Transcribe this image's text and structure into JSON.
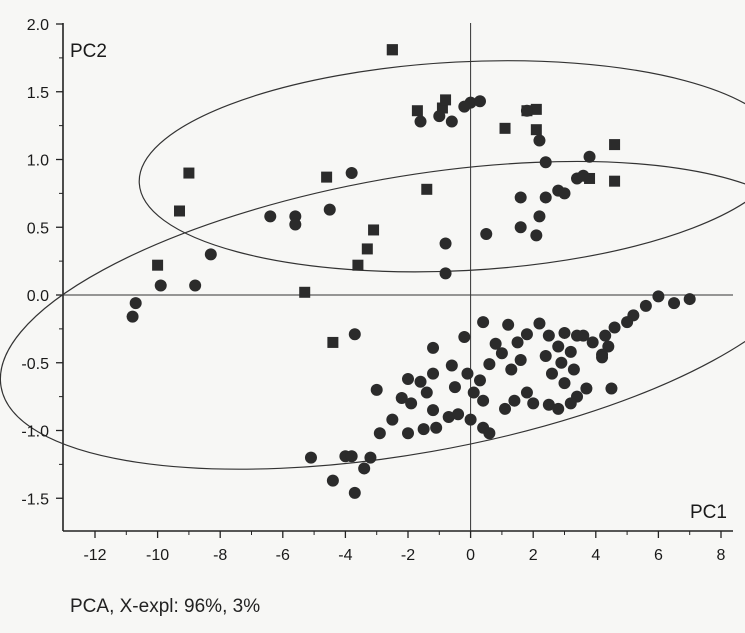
{
  "chart_data": {
    "type": "scatter",
    "xlabel": "PC1",
    "ylabel": "PC2",
    "caption": "PCA, X-expl: 96%, 3%",
    "xlim": [
      -13,
      8.5
    ],
    "ylim": [
      -1.75,
      2.0
    ],
    "x_ticks": [
      "-12",
      "-10",
      "-8",
      "-6",
      "-4",
      "-2",
      "0",
      "2",
      "4",
      "6",
      "8"
    ],
    "y_ticks": [
      "2.0",
      "1.5",
      "1.0",
      "0.5",
      "0.0",
      "-0.5",
      "-1.0",
      "-1.5"
    ],
    "grid": false,
    "reference_lines": {
      "x": 0,
      "y": 0
    },
    "marker_color": "#2b2b2b",
    "ellipses": [
      {
        "center": [
          -0.3,
          0.95
        ],
        "rx": 10.3,
        "ry": 0.77,
        "angle_deg": -3
      },
      {
        "center": [
          -2.0,
          -0.15
        ],
        "rx": 13.2,
        "ry": 1.02,
        "angle_deg": -10
      }
    ],
    "series": [
      {
        "marker": "square",
        "points": [
          [
            -2.5,
            1.81
          ],
          [
            -2.5,
            1.81
          ],
          [
            -1.7,
            1.36
          ],
          [
            -0.9,
            1.38
          ],
          [
            -0.8,
            1.44
          ],
          [
            1.1,
            1.23
          ],
          [
            1.8,
            1.36
          ],
          [
            2.1,
            1.37
          ],
          [
            2.1,
            1.22
          ],
          [
            4.6,
            1.11
          ],
          [
            4.6,
            0.84
          ],
          [
            3.8,
            0.86
          ],
          [
            -9.0,
            0.9
          ],
          [
            -9.3,
            0.62
          ],
          [
            -4.6,
            0.87
          ],
          [
            -1.4,
            0.78
          ],
          [
            -3.1,
            0.48
          ],
          [
            -3.3,
            0.34
          ],
          [
            -3.6,
            0.22
          ],
          [
            -10.0,
            0.22
          ],
          [
            -5.3,
            0.02
          ],
          [
            -4.4,
            -0.35
          ]
        ]
      },
      {
        "marker": "circle",
        "points": [
          [
            -1.6,
            1.28
          ],
          [
            -0.6,
            1.28
          ],
          [
            0.0,
            1.42
          ],
          [
            0.3,
            1.43
          ],
          [
            -1.0,
            1.32
          ],
          [
            -0.2,
            1.39
          ],
          [
            1.8,
            1.36
          ],
          [
            2.2,
            1.14
          ],
          [
            2.4,
            0.98
          ],
          [
            2.4,
            0.72
          ],
          [
            2.8,
            0.77
          ],
          [
            3.0,
            0.75
          ],
          [
            3.4,
            0.86
          ],
          [
            3.6,
            0.88
          ],
          [
            3.8,
            1.02
          ],
          [
            1.6,
            0.72
          ],
          [
            2.2,
            0.58
          ],
          [
            1.6,
            0.5
          ],
          [
            2.1,
            0.44
          ],
          [
            0.5,
            0.45
          ],
          [
            -3.8,
            0.9
          ],
          [
            -4.5,
            0.63
          ],
          [
            -5.6,
            0.58
          ],
          [
            -6.4,
            0.58
          ],
          [
            -5.6,
            0.52
          ],
          [
            -8.3,
            0.3
          ],
          [
            -0.8,
            0.38
          ],
          [
            -0.8,
            0.16
          ],
          [
            -10.7,
            -0.06
          ],
          [
            -10.8,
            -0.16
          ],
          [
            -9.9,
            0.07
          ],
          [
            -8.8,
            0.07
          ],
          [
            -3.7,
            -0.29
          ],
          [
            -1.2,
            -0.39
          ],
          [
            -0.2,
            -0.31
          ],
          [
            0.4,
            -0.2
          ],
          [
            6.0,
            -0.01
          ],
          [
            6.5,
            -0.06
          ],
          [
            7.0,
            -0.03
          ],
          [
            5.6,
            -0.08
          ],
          [
            5.2,
            -0.15
          ],
          [
            5.0,
            -0.2
          ],
          [
            4.6,
            -0.24
          ],
          [
            4.3,
            -0.3
          ],
          [
            4.4,
            -0.38
          ],
          [
            4.2,
            -0.44
          ],
          [
            3.6,
            -0.3
          ],
          [
            3.9,
            -0.35
          ],
          [
            3.4,
            -0.3
          ],
          [
            3.0,
            -0.28
          ],
          [
            3.2,
            -0.42
          ],
          [
            2.9,
            -0.5
          ],
          [
            3.3,
            -0.55
          ],
          [
            3.0,
            -0.65
          ],
          [
            3.4,
            -0.75
          ],
          [
            3.2,
            -0.8
          ],
          [
            3.7,
            -0.69
          ],
          [
            4.2,
            -0.46
          ],
          [
            4.5,
            -0.69
          ],
          [
            2.2,
            -0.21
          ],
          [
            2.5,
            -0.3
          ],
          [
            2.8,
            -0.38
          ],
          [
            2.4,
            -0.45
          ],
          [
            2.6,
            -0.58
          ],
          [
            1.8,
            -0.29
          ],
          [
            1.5,
            -0.35
          ],
          [
            1.6,
            -0.48
          ],
          [
            1.3,
            -0.55
          ],
          [
            1.0,
            -0.43
          ],
          [
            1.2,
            -0.22
          ],
          [
            0.8,
            -0.36
          ],
          [
            0.6,
            -0.51
          ],
          [
            0.3,
            -0.63
          ],
          [
            -0.1,
            -0.58
          ],
          [
            -0.6,
            -0.52
          ],
          [
            -1.2,
            -0.58
          ],
          [
            -1.6,
            -0.64
          ],
          [
            -2.0,
            -0.62
          ],
          [
            -1.4,
            -0.72
          ],
          [
            -0.5,
            -0.68
          ],
          [
            0.1,
            -0.72
          ],
          [
            0.4,
            -0.78
          ],
          [
            1.4,
            -0.78
          ],
          [
            1.1,
            -0.84
          ],
          [
            1.8,
            -0.72
          ],
          [
            2.0,
            -0.8
          ],
          [
            2.5,
            -0.81
          ],
          [
            2.8,
            -0.84
          ],
          [
            -2.2,
            -0.76
          ],
          [
            -1.9,
            -0.8
          ],
          [
            -1.2,
            -0.85
          ],
          [
            -1.1,
            -0.98
          ],
          [
            -0.7,
            -0.9
          ],
          [
            -0.4,
            -0.88
          ],
          [
            0.0,
            -0.92
          ],
          [
            0.4,
            -0.98
          ],
          [
            0.6,
            -1.02
          ],
          [
            -1.5,
            -0.99
          ],
          [
            -2.0,
            -1.02
          ],
          [
            -2.5,
            -0.92
          ],
          [
            -3.0,
            -0.7
          ],
          [
            -2.9,
            -1.02
          ],
          [
            -5.1,
            -1.2
          ],
          [
            -4.0,
            -1.19
          ],
          [
            -3.8,
            -1.19
          ],
          [
            -3.2,
            -1.2
          ],
          [
            -3.4,
            -1.28
          ],
          [
            -4.4,
            -1.37
          ],
          [
            -3.7,
            -1.46
          ]
        ]
      }
    ]
  }
}
